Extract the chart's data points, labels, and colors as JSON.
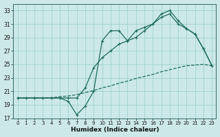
{
  "xlabel": "Humidex (Indice chaleur)",
  "bg_color": "#cce8e8",
  "grid_color": "#99cccc",
  "line_color": "#1a6b5a",
  "xlim": [
    -0.5,
    23.5
  ],
  "ylim": [
    17,
    34
  ],
  "yticks": [
    17,
    19,
    21,
    23,
    25,
    27,
    29,
    31,
    33
  ],
  "xticks": [
    0,
    1,
    2,
    3,
    4,
    5,
    6,
    7,
    8,
    9,
    10,
    11,
    12,
    13,
    14,
    15,
    16,
    17,
    18,
    19,
    20,
    21,
    22,
    23
  ],
  "line1_x": [
    0,
    1,
    2,
    3,
    4,
    5,
    6,
    7,
    8,
    9,
    10,
    11,
    12,
    13,
    14,
    15,
    16,
    17,
    18,
    19,
    20,
    21,
    22,
    23
  ],
  "line1_y": [
    20.0,
    20.0,
    20.0,
    20.0,
    20.0,
    20.2,
    20.3,
    20.5,
    20.8,
    21.1,
    21.5,
    21.8,
    22.2,
    22.5,
    22.9,
    23.2,
    23.5,
    23.9,
    24.2,
    24.5,
    24.8,
    24.9,
    25.0,
    24.8
  ],
  "line2_x": [
    0,
    1,
    2,
    3,
    4,
    5,
    6,
    7,
    8,
    9,
    10,
    11,
    12,
    13,
    14,
    15,
    16,
    17,
    18,
    19,
    20,
    21,
    22,
    23
  ],
  "line2_y": [
    20.0,
    20.0,
    20.0,
    20.0,
    20.0,
    20.0,
    20.0,
    20.0,
    21.5,
    24.5,
    26.0,
    27.0,
    28.0,
    28.5,
    29.0,
    30.0,
    31.0,
    32.0,
    32.5,
    31.0,
    30.3,
    29.5,
    27.3,
    24.8
  ],
  "line3_x": [
    0,
    1,
    2,
    3,
    4,
    5,
    6,
    7,
    8,
    9,
    10,
    11,
    12,
    13,
    14,
    15,
    16,
    17,
    18,
    19,
    20,
    21,
    22,
    23
  ],
  "line3_y": [
    20.0,
    20.0,
    20.0,
    20.0,
    20.0,
    20.0,
    19.5,
    17.5,
    18.8,
    21.0,
    28.5,
    30.0,
    30.0,
    28.5,
    30.0,
    30.5,
    31.0,
    32.5,
    33.0,
    31.5,
    30.3,
    29.5,
    27.3,
    24.8
  ]
}
